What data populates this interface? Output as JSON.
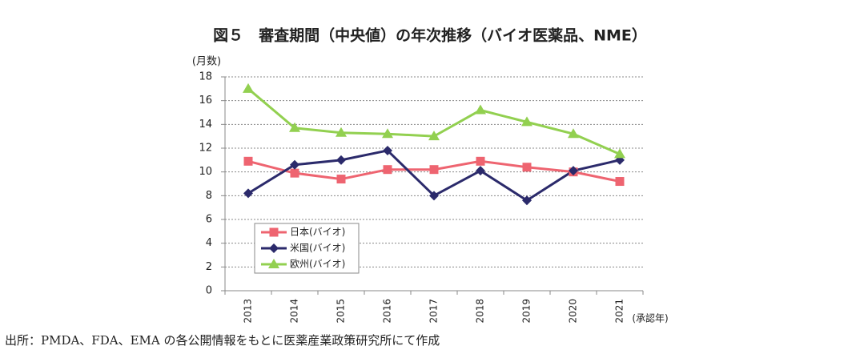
{
  "chart_data": {
    "type": "line",
    "title": "図５　審査期間（中央値）の年次推移（バイオ医薬品、NME）",
    "y_label": "(月数)",
    "x_label": "(承認年)",
    "categories": [
      "2013",
      "2014",
      "2015",
      "2016",
      "2017",
      "2018",
      "2019",
      "2020",
      "2021"
    ],
    "series": [
      {
        "name": "日本(バイオ)",
        "color": "#ee6470",
        "marker": "square",
        "values": [
          10.9,
          9.9,
          9.4,
          10.2,
          10.2,
          10.9,
          10.4,
          10.0,
          9.2
        ]
      },
      {
        "name": "米国(バイオ)",
        "color": "#2b2a6b",
        "marker": "diamond",
        "values": [
          8.2,
          10.6,
          11.0,
          11.8,
          8.0,
          10.1,
          7.6,
          10.1,
          11.0
        ]
      },
      {
        "name": "欧州(バイオ)",
        "color": "#92d050",
        "marker": "triangle",
        "values": [
          17.0,
          13.7,
          13.3,
          13.2,
          13.0,
          15.2,
          14.2,
          13.2,
          11.5
        ]
      }
    ],
    "ylim": [
      0,
      18
    ],
    "yticks": [
      0,
      2,
      4,
      6,
      8,
      10,
      12,
      14,
      16,
      18
    ],
    "grid": true,
    "legend": "lower left"
  },
  "source": "出所：PMDA、FDA、EMA の各公開情報をもとに医薬産業政策研究所にて作成"
}
